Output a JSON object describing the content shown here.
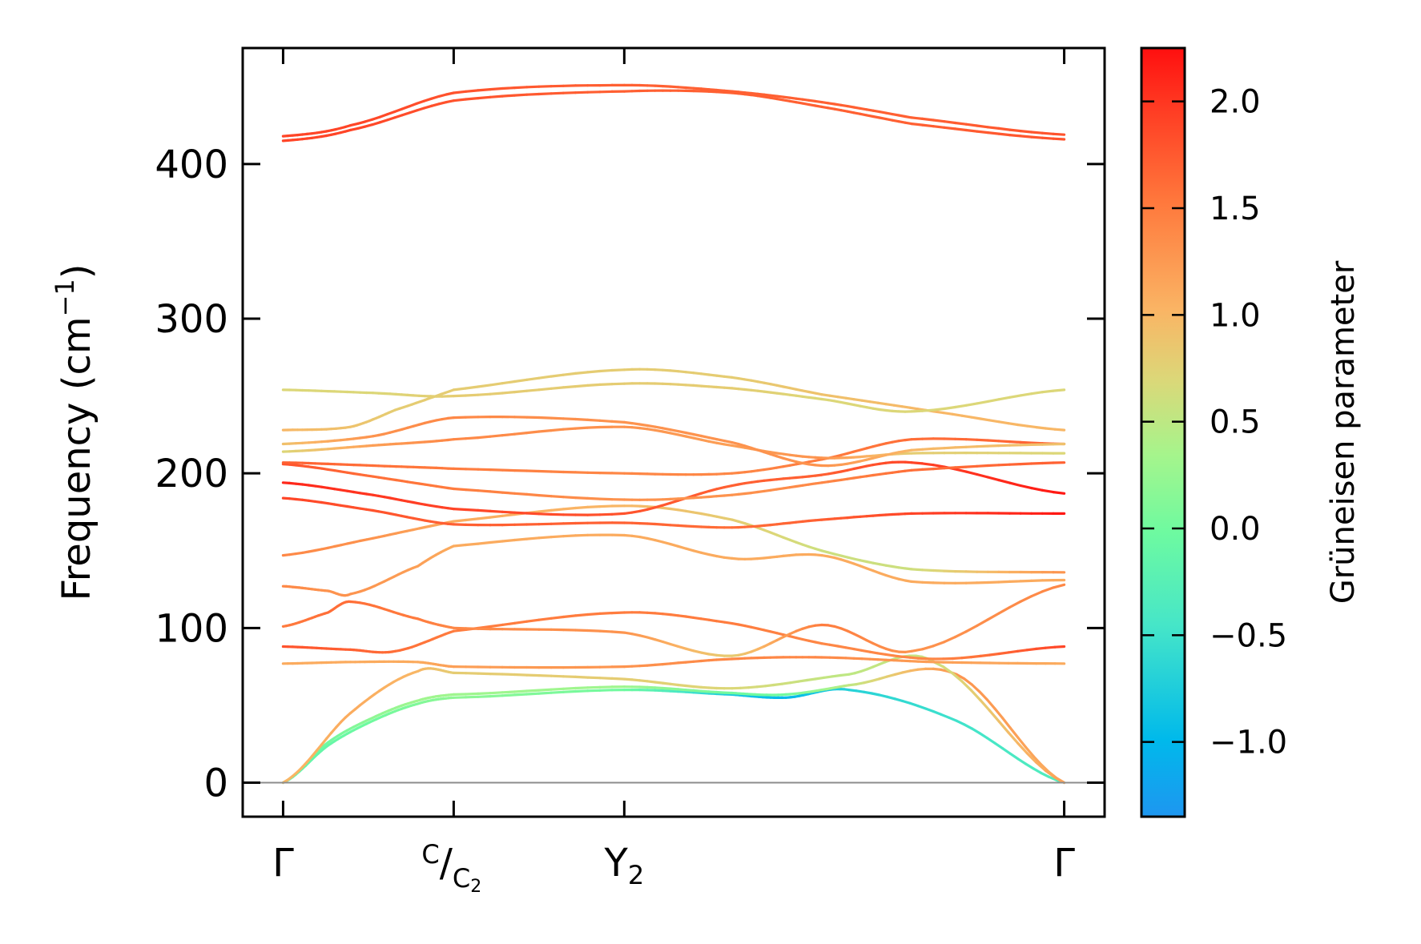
{
  "chart_data": {
    "type": "line",
    "ylabel": "Frequency (cm",
    "ylabel_sup": "−1",
    "ylabel_close": ")",
    "ylim": [
      -22,
      475
    ],
    "yticks": [
      {
        "value": 0,
        "label": "0"
      },
      {
        "value": 100,
        "label": "100"
      },
      {
        "value": 200,
        "label": "200"
      },
      {
        "value": 300,
        "label": "300"
      },
      {
        "value": 400,
        "label": "400"
      }
    ],
    "xlim": [
      -0.09,
      1.83
    ],
    "xticks": [
      {
        "pos": 0.0,
        "label": "Γ",
        "sub": "",
        "pre": ""
      },
      {
        "pos": 0.38,
        "label": "/",
        "sub": "C",
        "sub2": "2",
        "pre": "C"
      },
      {
        "pos": 0.76,
        "label": "Y",
        "sub": "2",
        "pre": ""
      },
      {
        "pos": 1.74,
        "label": "Γ",
        "sub": "",
        "pre": ""
      }
    ],
    "colorbar": {
      "label": "Grüneisen parameter",
      "range": [
        -1.35,
        2.25
      ],
      "ticks": [
        {
          "value": -1.0,
          "label": "−1.0"
        },
        {
          "value": -0.5,
          "label": "−0.5"
        },
        {
          "value": 0.0,
          "label": "0.0"
        },
        {
          "value": 0.5,
          "label": "0.5"
        },
        {
          "value": 1.0,
          "label": "1.0"
        },
        {
          "value": 1.5,
          "label": "1.5"
        },
        {
          "value": 2.0,
          "label": "2.0"
        }
      ]
    },
    "series": [
      {
        "x": [
          0,
          0.1,
          0.2,
          0.3,
          0.38
        ],
        "y": [
          0,
          24,
          40,
          51,
          55
        ],
        "g": [
          -0.2,
          -0.1,
          0.0,
          0.1,
          0.2
        ]
      },
      {
        "x": [
          0.38,
          0.76,
          1.0,
          1.12,
          1.26,
          1.5,
          1.74
        ],
        "y": [
          55,
          60,
          57,
          55,
          60,
          40,
          0
        ],
        "g": [
          0.2,
          0.0,
          -0.8,
          -1.0,
          -0.7,
          -0.5,
          -0.3
        ]
      },
      {
        "x": [
          0,
          0.1,
          0.2,
          0.3,
          0.38
        ],
        "y": [
          0,
          26,
          42,
          53,
          57
        ],
        "g": [
          -0.1,
          0.0,
          0.2,
          0.3,
          0.3
        ]
      },
      {
        "x": [
          0.38,
          0.76,
          1.0,
          1.12,
          1.26,
          1.5,
          1.74
        ],
        "y": [
          57,
          62,
          58,
          57,
          63,
          70,
          0
        ],
        "g": [
          0.3,
          0.3,
          0.0,
          0.0,
          0.5,
          1.3,
          1.1
        ]
      },
      {
        "x": [
          0,
          0.15,
          0.3,
          0.38,
          0.76,
          1.0,
          1.26,
          1.45,
          1.74
        ],
        "y": [
          0,
          45,
          72,
          71,
          67,
          61,
          70,
          78,
          0
        ],
        "g": [
          1.0,
          1.1,
          1.0,
          0.8,
          0.8,
          0.7,
          0.5,
          0.6,
          1.2
        ]
      },
      {
        "x": [
          0,
          0.15,
          0.3,
          0.38,
          0.76,
          1.0,
          1.2,
          1.45,
          1.74
        ],
        "y": [
          77,
          78,
          78,
          75,
          75,
          80,
          81,
          78,
          77
        ],
        "g": [
          1.1,
          1.1,
          1.1,
          1.2,
          1.3,
          1.4,
          1.4,
          1.2,
          1.1
        ]
      },
      {
        "x": [
          0,
          0.15,
          0.25,
          0.38,
          0.76,
          1.0,
          1.2,
          1.45,
          1.74
        ],
        "y": [
          88,
          86,
          85,
          98,
          110,
          103,
          90,
          80,
          88
        ],
        "g": [
          1.8,
          1.7,
          1.6,
          1.5,
          1.5,
          1.5,
          1.4,
          1.4,
          1.9
        ]
      },
      {
        "x": [
          0,
          0.1,
          0.15,
          0.3,
          0.38,
          0.76,
          1.0,
          1.2,
          1.4,
          1.74
        ],
        "y": [
          101,
          110,
          117,
          106,
          100,
          97,
          82,
          102,
          85,
          128
        ],
        "g": [
          1.5,
          1.6,
          1.6,
          1.5,
          1.4,
          1.3,
          0.8,
          1.5,
          1.3,
          1.4
        ]
      },
      {
        "x": [
          0,
          0.1,
          0.15,
          0.3,
          0.38,
          0.76,
          1.0,
          1.2,
          1.4,
          1.74
        ],
        "y": [
          127,
          124,
          122,
          140,
          153,
          160,
          145,
          147,
          130,
          131
        ],
        "g": [
          1.4,
          1.3,
          1.3,
          1.2,
          1.1,
          1.1,
          1.1,
          1.1,
          1.1,
          1.1
        ]
      },
      {
        "x": [
          0,
          0.2,
          0.38,
          0.76,
          1.0,
          1.2,
          1.4,
          1.74
        ],
        "y": [
          147,
          158,
          169,
          179,
          170,
          150,
          138,
          136
        ],
        "g": [
          1.4,
          1.3,
          1.1,
          1.0,
          0.8,
          0.6,
          0.6,
          1.3
        ]
      },
      {
        "x": [
          0,
          0.2,
          0.38,
          0.76,
          1.0,
          1.2,
          1.4,
          1.74
        ],
        "y": [
          184,
          176,
          167,
          168,
          165,
          170,
          174,
          174
        ],
        "g": [
          1.9,
          1.8,
          1.7,
          1.7,
          1.6,
          1.7,
          1.9,
          2.2
        ]
      },
      {
        "x": [
          0,
          0.2,
          0.38,
          0.76,
          1.0,
          1.2,
          1.4,
          1.74
        ],
        "y": [
          194,
          186,
          177,
          174,
          192,
          199,
          207,
          187
        ],
        "g": [
          2.1,
          2.0,
          1.9,
          1.8,
          1.7,
          1.7,
          1.9,
          2.2
        ]
      },
      {
        "x": [
          0,
          0.2,
          0.38,
          0.76,
          1.0,
          1.2,
          1.4,
          1.74
        ],
        "y": [
          206,
          198,
          190,
          183,
          186,
          194,
          202,
          207
        ],
        "g": [
          1.8,
          1.6,
          1.5,
          1.3,
          1.3,
          1.4,
          1.6,
          1.7
        ]
      },
      {
        "x": [
          0,
          0.2,
          0.38,
          0.76,
          1.0,
          1.2,
          1.4,
          1.74
        ],
        "y": [
          207,
          205,
          203,
          200,
          200,
          209,
          222,
          219
        ],
        "g": [
          1.7,
          1.6,
          1.5,
          1.4,
          1.4,
          1.5,
          1.6,
          1.7
        ]
      },
      {
        "x": [
          0,
          0.2,
          0.38,
          0.76,
          1.0,
          1.2,
          1.4,
          1.74
        ],
        "y": [
          214,
          218,
          222,
          230,
          218,
          210,
          213,
          213
        ],
        "g": [
          0.7,
          1.2,
          1.4,
          1.3,
          1.2,
          1.3,
          0.8,
          0.7
        ]
      },
      {
        "x": [
          0,
          0.2,
          0.38,
          0.76,
          1.0,
          1.2,
          1.4,
          1.74
        ],
        "y": [
          219,
          224,
          236,
          233,
          220,
          205,
          215,
          219
        ],
        "g": [
          0.9,
          1.3,
          1.4,
          1.3,
          1.3,
          1.3,
          1.0,
          0.9
        ]
      },
      {
        "x": [
          0,
          0.15,
          0.25,
          0.38,
          0.76,
          1.0,
          1.2,
          1.45,
          1.74
        ],
        "y": [
          228,
          230,
          241,
          254,
          267,
          262,
          251,
          240,
          228
        ],
        "g": [
          1.0,
          0.9,
          0.8,
          0.8,
          0.8,
          0.8,
          0.9,
          1.0,
          1.0
        ]
      },
      {
        "x": [
          0,
          0.2,
          0.38,
          0.76,
          1.0,
          1.2,
          1.4,
          1.74
        ],
        "y": [
          254,
          252,
          250,
          258,
          255,
          248,
          240,
          254
        ],
        "g": [
          0.7,
          0.7,
          0.8,
          0.8,
          0.8,
          0.7,
          0.7,
          0.7
        ]
      },
      {
        "x": [
          0,
          0.15,
          0.38,
          0.76,
          1.0,
          1.2,
          1.4,
          1.74
        ],
        "y": [
          415,
          422,
          441,
          447,
          446,
          437,
          426,
          416
        ],
        "g": [
          1.9,
          1.9,
          1.8,
          1.7,
          1.7,
          1.7,
          1.7,
          1.8
        ]
      },
      {
        "x": [
          0,
          0.15,
          0.38,
          0.76,
          1.0,
          1.2,
          1.4,
          1.74
        ],
        "y": [
          418,
          425,
          446,
          451,
          447,
          440,
          430,
          419
        ],
        "g": [
          1.9,
          1.9,
          1.8,
          1.7,
          1.7,
          1.7,
          1.7,
          1.8
        ]
      }
    ],
    "zero_line": 0
  }
}
